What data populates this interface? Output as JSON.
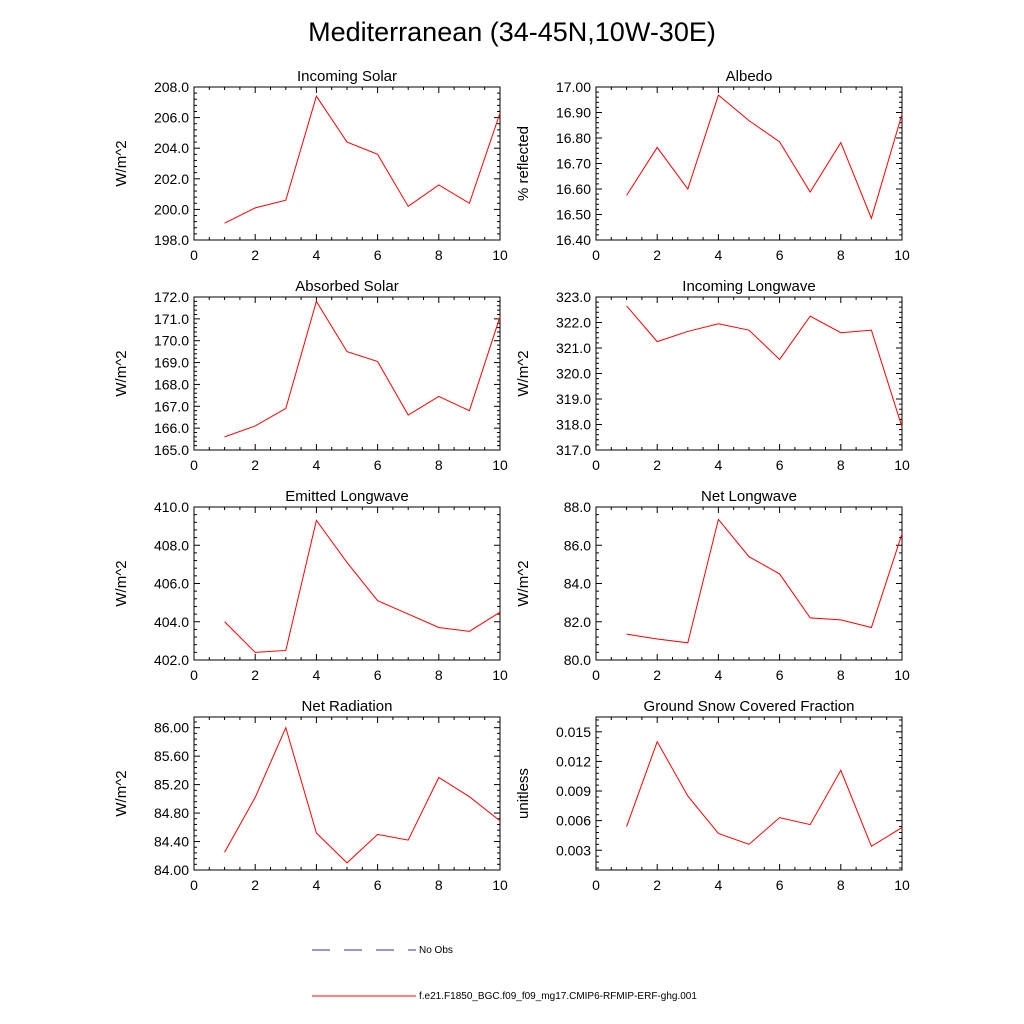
{
  "figure": {
    "title": "Mediterranean (34-45N,10W-30E)"
  },
  "legend": {
    "entries": [
      {
        "label": "No Obs",
        "color": "#3333aa",
        "dash": "dashed"
      },
      {
        "label": "f.e21.F1850_BGC.f09_f09_mg17.CMIP6-RFMIP-ERF-ghg.001",
        "color": "#ff0000",
        "dash": "solid"
      }
    ]
  },
  "chart_data": [
    {
      "type": "line",
      "title": "Incoming Solar",
      "ylabel": "W/m^2",
      "xlabel": "",
      "xlim": [
        0,
        10
      ],
      "ylim": [
        198.0,
        208.0
      ],
      "xticks": [
        0,
        2,
        4,
        6,
        8,
        10
      ],
      "yticks": [
        198.0,
        200.0,
        202.0,
        204.0,
        206.0,
        208.0
      ],
      "ytick_labels": [
        "198.0",
        "200.0",
        "202.0",
        "204.0",
        "206.0",
        "208.0"
      ],
      "series": [
        {
          "x": [
            1,
            2,
            3,
            4,
            5,
            6,
            7,
            8,
            9,
            10
          ],
          "values": [
            199.1,
            200.1,
            200.6,
            207.4,
            204.4,
            203.6,
            200.2,
            201.6,
            200.4,
            206.3
          ],
          "color": "#ff0000"
        }
      ]
    },
    {
      "type": "line",
      "title": "Albedo",
      "ylabel": "% reflected",
      "xlabel": "",
      "xlim": [
        0,
        10
      ],
      "ylim": [
        16.4,
        17.0
      ],
      "xticks": [
        0,
        2,
        4,
        6,
        8,
        10
      ],
      "yticks": [
        16.4,
        16.5,
        16.6,
        16.7,
        16.8,
        16.9,
        17.0
      ],
      "ytick_labels": [
        "16.40",
        "16.50",
        "16.60",
        "16.70",
        "16.80",
        "16.90",
        "17.00"
      ],
      "series": [
        {
          "x": [
            1,
            2,
            3,
            4,
            5,
            6,
            7,
            8,
            9,
            10
          ],
          "values": [
            16.575,
            16.763,
            16.6,
            16.968,
            16.868,
            16.785,
            16.588,
            16.782,
            16.485,
            16.893
          ],
          "color": "#ff0000"
        }
      ]
    },
    {
      "type": "line",
      "title": "Absorbed Solar",
      "ylabel": "W/m^2",
      "xlabel": "",
      "xlim": [
        0,
        10
      ],
      "ylim": [
        165.0,
        172.0
      ],
      "xticks": [
        0,
        2,
        4,
        6,
        8,
        10
      ],
      "yticks": [
        165.0,
        166.0,
        167.0,
        168.0,
        169.0,
        170.0,
        171.0,
        172.0
      ],
      "ytick_labels": [
        "165.0",
        "166.0",
        "167.0",
        "168.0",
        "169.0",
        "170.0",
        "171.0",
        "172.0"
      ],
      "series": [
        {
          "x": [
            1,
            2,
            3,
            4,
            5,
            6,
            7,
            8,
            9,
            10
          ],
          "values": [
            165.6,
            166.1,
            166.9,
            171.8,
            169.5,
            169.05,
            166.6,
            167.45,
            166.8,
            171.1
          ],
          "color": "#ff0000"
        }
      ]
    },
    {
      "type": "line",
      "title": "Incoming Longwave",
      "ylabel": "W/m^2",
      "xlabel": "",
      "xlim": [
        0,
        10
      ],
      "ylim": [
        317.0,
        323.0
      ],
      "xticks": [
        0,
        2,
        4,
        6,
        8,
        10
      ],
      "yticks": [
        317.0,
        318.0,
        319.0,
        320.0,
        321.0,
        322.0,
        323.0
      ],
      "ytick_labels": [
        "317.0",
        "318.0",
        "319.0",
        "320.0",
        "321.0",
        "322.0",
        "323.0"
      ],
      "series": [
        {
          "x": [
            1,
            2,
            3,
            4,
            5,
            6,
            7,
            8,
            9,
            10
          ],
          "values": [
            322.65,
            321.25,
            321.65,
            321.95,
            321.7,
            320.55,
            322.25,
            321.6,
            321.7,
            317.9
          ],
          "color": "#ff0000"
        }
      ]
    },
    {
      "type": "line",
      "title": "Emitted Longwave",
      "ylabel": "W/m^2",
      "xlabel": "",
      "xlim": [
        0,
        10
      ],
      "ylim": [
        402.0,
        410.0
      ],
      "xticks": [
        0,
        2,
        4,
        6,
        8,
        10
      ],
      "yticks": [
        402.0,
        404.0,
        406.0,
        408.0,
        410.0
      ],
      "ytick_labels": [
        "402.0",
        "404.0",
        "406.0",
        "408.0",
        "410.0"
      ],
      "series": [
        {
          "x": [
            1,
            2,
            3,
            4,
            5,
            6,
            7,
            8,
            9,
            10
          ],
          "values": [
            404.0,
            402.4,
            402.5,
            409.3,
            407.1,
            405.1,
            404.4,
            403.7,
            403.5,
            404.5
          ],
          "color": "#ff0000"
        }
      ]
    },
    {
      "type": "line",
      "title": "Net Longwave",
      "ylabel": "W/m^2",
      "xlabel": "",
      "xlim": [
        0,
        10
      ],
      "ylim": [
        80.0,
        88.0
      ],
      "xticks": [
        0,
        2,
        4,
        6,
        8,
        10
      ],
      "yticks": [
        80.0,
        82.0,
        84.0,
        86.0,
        88.0
      ],
      "ytick_labels": [
        "80.0",
        "82.0",
        "84.0",
        "86.0",
        "88.0"
      ],
      "series": [
        {
          "x": [
            1,
            2,
            3,
            4,
            5,
            6,
            7,
            8,
            9,
            10
          ],
          "values": [
            81.35,
            81.1,
            80.9,
            87.35,
            85.4,
            84.5,
            82.2,
            82.1,
            81.7,
            86.6
          ],
          "color": "#ff0000"
        }
      ]
    },
    {
      "type": "line",
      "title": "Net Radiation",
      "ylabel": "W/m^2",
      "xlabel": "",
      "xlim": [
        0,
        10
      ],
      "ylim": [
        84.0,
        86.15
      ],
      "xticks": [
        0,
        2,
        4,
        6,
        8,
        10
      ],
      "yticks": [
        84.0,
        84.4,
        84.8,
        85.2,
        85.6,
        86.0
      ],
      "ytick_labels": [
        "84.00",
        "84.40",
        "84.80",
        "85.20",
        "85.60",
        "86.00"
      ],
      "series": [
        {
          "x": [
            1,
            2,
            3,
            4,
            5,
            6,
            7,
            8,
            9,
            10
          ],
          "values": [
            84.25,
            85.02,
            86.0,
            84.52,
            84.1,
            84.5,
            84.42,
            85.3,
            85.03,
            84.69
          ],
          "color": "#ff0000"
        }
      ]
    },
    {
      "type": "line",
      "title": "Ground Snow Covered Fraction",
      "ylabel": "unitless",
      "xlabel": "",
      "xlim": [
        0,
        10
      ],
      "ylim": [
        0.001,
        0.0165
      ],
      "xticks": [
        0,
        2,
        4,
        6,
        8,
        10
      ],
      "yticks": [
        0.003,
        0.006,
        0.009,
        0.012,
        0.015
      ],
      "ytick_labels": [
        "0.003",
        "0.006",
        "0.009",
        "0.012",
        "0.015"
      ],
      "series": [
        {
          "x": [
            1,
            2,
            3,
            4,
            5,
            6,
            7,
            8,
            9,
            10
          ],
          "values": [
            0.0054,
            0.014,
            0.0085,
            0.0047,
            0.0036,
            0.0063,
            0.0056,
            0.0111,
            0.0034,
            0.0053
          ],
          "color": "#ff0000"
        }
      ]
    }
  ]
}
